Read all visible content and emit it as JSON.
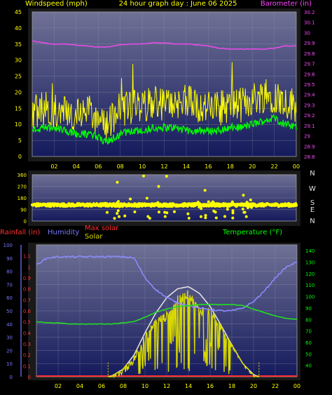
{
  "header": {
    "left_label": "Windspeed (mph)",
    "center_title": "24 hour graph day : June 06 2025",
    "right_label": "Barometer (in)"
  },
  "compass": {
    "letters": [
      "N",
      "W",
      "S",
      "E",
      "N"
    ]
  },
  "lower_labels": {
    "rainfall": "Rainfall (in)",
    "humidity": "Humidity",
    "max_solar": "Max solar",
    "solar": "Solar",
    "temperature": "Temperature (°F)"
  },
  "colors": {
    "plot_bg_top": "#6f7195",
    "plot_bg_bottom": "#141a5c",
    "wind": "#ffff00",
    "gust": "#00ff00",
    "barometer": "#e64ce6",
    "wind_dir": "#ffff00",
    "humidity": "#8a8aff",
    "temperature": "#22dd22",
    "solar": "#d8d800",
    "max_solar": "#e8e8e8",
    "rain": "#ff3030",
    "left_axis": "#ffff00",
    "right_axis_baro": "#ff44ff",
    "humidity_axis": "#7777ff",
    "rain_axis": "#ff3030",
    "temp_axis": "#00ff00",
    "x_axis": "#ffff00"
  },
  "chart_data": [
    {
      "type": "line",
      "title": "24 hour graph day : June 06 2025",
      "x_ticks": [
        "02",
        "04",
        "06",
        "08",
        "10",
        "12",
        "14",
        "16",
        "18",
        "20",
        "22",
        "00"
      ],
      "x_hours": [
        2,
        4,
        6,
        8,
        10,
        12,
        14,
        16,
        18,
        20,
        22,
        24
      ],
      "x_range": [
        0,
        24
      ],
      "left_axis": {
        "label": "Windspeed (mph)",
        "range": [
          0,
          45
        ],
        "ticks": [
          0,
          5,
          10,
          15,
          20,
          25,
          30,
          35,
          40,
          45
        ]
      },
      "right_axis": {
        "label": "Barometer (in)",
        "range": [
          28.8,
          30.2
        ],
        "ticks": [
          "28.8",
          "28.9",
          "29",
          "29.1",
          "29.2",
          "29.3",
          "29.4",
          "29.5",
          "29.6",
          "29.7",
          "29.8",
          "29.9",
          "30",
          "30.1",
          "30.2"
        ]
      },
      "series": [
        {
          "name": "Windspeed (mph)",
          "axis": "left",
          "hours": [
            0,
            1,
            2,
            3,
            4,
            5,
            6,
            6.5,
            7,
            8,
            9,
            10,
            11,
            12,
            13,
            14,
            15,
            16,
            17,
            18,
            19,
            20,
            21,
            22,
            23,
            24
          ],
          "values": [
            14,
            15,
            14,
            15,
            13,
            14,
            12,
            10,
            11,
            15,
            15,
            16,
            17,
            16,
            17,
            17,
            16,
            15,
            15,
            16,
            16,
            18,
            19,
            19,
            17,
            16
          ]
        },
        {
          "name": "Wind gust",
          "axis": "left",
          "hours": [
            0,
            1,
            2,
            3,
            4,
            5,
            6,
            6.5,
            7,
            8,
            9,
            10,
            11,
            12,
            13,
            14,
            15,
            16,
            17,
            18,
            19,
            20,
            21,
            22,
            23,
            24
          ],
          "values": [
            8,
            9,
            9,
            8,
            7,
            7,
            6,
            5,
            5,
            7,
            8,
            8,
            9,
            9,
            9,
            8,
            8,
            8,
            8,
            9,
            9,
            10,
            11,
            12,
            10,
            9
          ]
        },
        {
          "name": "Barometer (in)",
          "axis": "right",
          "hours": [
            0,
            1,
            2,
            3,
            4,
            5,
            6,
            7,
            8,
            9,
            10,
            11,
            12,
            13,
            14,
            15,
            16,
            17,
            18,
            19,
            20,
            21,
            22,
            23,
            24
          ],
          "values": [
            29.92,
            29.9,
            29.89,
            29.89,
            29.88,
            29.87,
            29.86,
            29.86,
            29.88,
            29.89,
            29.89,
            29.9,
            29.9,
            29.89,
            29.89,
            29.88,
            29.87,
            29.85,
            29.84,
            29.84,
            29.84,
            29.84,
            29.85,
            29.87,
            29.87
          ]
        }
      ]
    },
    {
      "type": "scatter",
      "x_range": [
        0,
        24
      ],
      "y_axis": {
        "range": [
          0,
          360
        ],
        "ticks": [
          0,
          90,
          180,
          270,
          360
        ]
      },
      "series": [
        {
          "name": "Wind direction",
          "typical_values": [
            130,
            120,
            140,
            125,
            135
          ]
        }
      ]
    },
    {
      "type": "line",
      "x_range": [
        0,
        24
      ],
      "x_ticks": [
        "02",
        "04",
        "06",
        "08",
        "10",
        "12",
        "14",
        "16",
        "18",
        "20",
        "22",
        "00"
      ],
      "rain_axis": {
        "label": "Rainfall (in)",
        "range": [
          0,
          1.2
        ],
        "ticks": [
          "0",
          "0.1",
          "0.2",
          "0.3",
          "0.4",
          "0.5",
          "0.6",
          "0.7",
          "0.8",
          "0.9",
          "1",
          "1.1"
        ]
      },
      "humidity_axis": {
        "label": "Humidity",
        "range": [
          0,
          100
        ],
        "ticks": [
          0,
          10,
          20,
          30,
          40,
          50,
          60,
          70,
          80,
          90,
          100
        ]
      },
      "temp_axis": {
        "label": "Temperature (°F)",
        "range": [
          30,
          145
        ],
        "ticks": [
          40,
          50,
          60,
          70,
          80,
          90,
          100,
          110,
          120,
          130,
          140
        ]
      },
      "series": [
        {
          "name": "Humidity",
          "axis": "humidity",
          "hours": [
            0,
            1,
            2,
            3,
            4,
            5,
            6,
            7,
            8,
            9,
            10,
            11,
            12,
            13,
            14,
            15,
            16,
            17,
            18,
            19,
            20,
            21,
            22,
            23,
            24
          ],
          "values": [
            85,
            90,
            91,
            91,
            91,
            91,
            91,
            91,
            91,
            90,
            75,
            66,
            60,
            56,
            54,
            52,
            51,
            50,
            50,
            52,
            57,
            65,
            75,
            83,
            87
          ]
        },
        {
          "name": "Temperature (°F)",
          "axis": "temp",
          "hours": [
            0,
            1,
            2,
            3,
            4,
            5,
            6,
            7,
            8,
            9,
            10,
            11,
            12,
            13,
            14,
            15,
            16,
            17,
            18,
            19,
            20,
            21,
            22,
            23,
            24
          ],
          "values": [
            78,
            77,
            77,
            76,
            76,
            76,
            76,
            76,
            77,
            78,
            82,
            86,
            89,
            91,
            92,
            93,
            93,
            93,
            93,
            92,
            89,
            86,
            83,
            81,
            80
          ]
        },
        {
          "name": "Max solar",
          "axis": "rain",
          "hours": [
            6.6,
            7,
            8,
            9,
            10,
            11,
            12,
            13,
            14,
            15,
            16,
            17,
            18,
            19,
            20,
            20.5
          ],
          "values": [
            0,
            0.01,
            0.07,
            0.2,
            0.4,
            0.58,
            0.72,
            0.8,
            0.82,
            0.76,
            0.64,
            0.47,
            0.29,
            0.12,
            0.02,
            0
          ]
        },
        {
          "name": "Solar",
          "axis": "rain",
          "hours": [
            6.6,
            7,
            8,
            9,
            10,
            11,
            12,
            13,
            14,
            15,
            16,
            17,
            18,
            19,
            20,
            20.5
          ],
          "values": [
            0,
            0.01,
            0.06,
            0.16,
            0.35,
            0.5,
            0.55,
            0.7,
            0.75,
            0.6,
            0.6,
            0.45,
            0.3,
            0.15,
            0.02,
            0
          ]
        },
        {
          "name": "Rainfall (in)",
          "axis": "rain",
          "hours": [
            0,
            24
          ],
          "values": [
            0,
            0
          ]
        }
      ]
    }
  ]
}
